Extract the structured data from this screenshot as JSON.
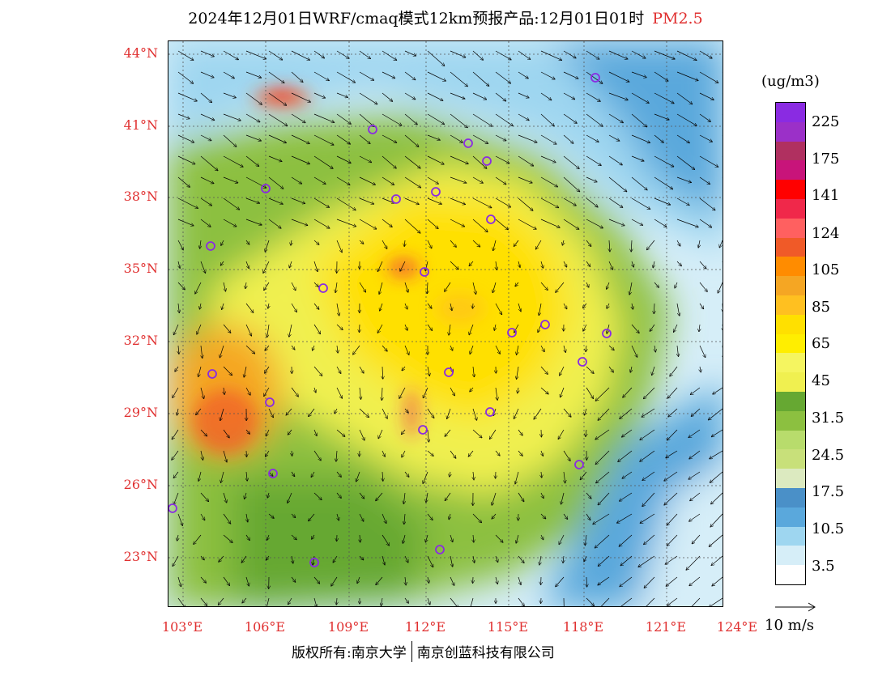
{
  "title": {
    "main": "2024年12月01日WRF/cmaq模式12km预报产品:12月01日01时",
    "variable": "PM2.5"
  },
  "map": {
    "lat_labels": [
      "44°N",
      "41°N",
      "38°N",
      "35°N",
      "32°N",
      "29°N",
      "26°N",
      "23°N"
    ],
    "lon_labels": [
      "103°E",
      "106°E",
      "109°E",
      "112°E",
      "115°E",
      "118°E",
      "121°E",
      "124°E"
    ]
  },
  "legend": {
    "unit": "(ug/m3)",
    "labels": [
      "225",
      "175",
      "141",
      "124",
      "105",
      "85",
      "65",
      "45",
      "31.5",
      "24.5",
      "17.5",
      "10.5",
      "3.5"
    ],
    "colors": [
      "#8a2be2",
      "#9b30c8",
      "#b03060",
      "#c8147a",
      "#ff0000",
      "#f0284a",
      "#ff6060",
      "#f05a28",
      "#ff8c00",
      "#f5a623",
      "#ffc020",
      "#ffe000",
      "#ffee00",
      "#f5f560",
      "#f0f050",
      "#66a832",
      "#8cc040",
      "#b8dc6c",
      "#c8e07a",
      "#dceac0",
      "#4a90c8",
      "#5aa8dc",
      "#9ed6f0",
      "#d6eef8",
      "#ffffff"
    ]
  },
  "wind": {
    "label": "10 m/s"
  },
  "footer": {
    "copyright_left": "版权所有:南京大学",
    "copyright_right": "南京创蓝科技有限公司"
  }
}
